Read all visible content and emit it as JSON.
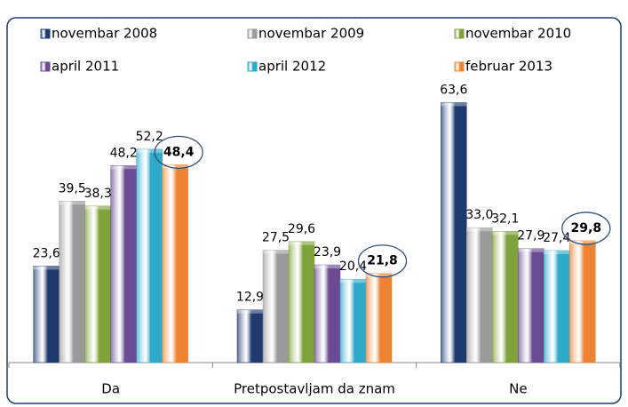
{
  "chart_data": {
    "type": "bar",
    "categories": [
      "Da",
      "Pretpostavljam da znam",
      "Ne"
    ],
    "series": [
      {
        "name": "novembar 2008",
        "color": "#1f3a6e",
        "values": [
          23.6,
          12.9,
          63.6
        ],
        "value_labels": [
          "23,6",
          "12,9",
          "63,6"
        ]
      },
      {
        "name": "novembar 2009",
        "color": "#9a9a9a",
        "values": [
          39.5,
          27.5,
          33.0
        ],
        "value_labels": [
          "39,5",
          "27,5",
          "33,0"
        ]
      },
      {
        "name": "novembar 2010",
        "color": "#7fa33a",
        "values": [
          38.3,
          29.6,
          32.1
        ],
        "value_labels": [
          "38,3",
          "29,6",
          "32,1"
        ]
      },
      {
        "name": "april 2011",
        "color": "#6a4b94",
        "values": [
          48.2,
          23.9,
          27.9
        ],
        "value_labels": [
          "48,2",
          "23,9",
          "27,9"
        ]
      },
      {
        "name": "april 2012",
        "color": "#2ea9c9",
        "values": [
          52.2,
          20.4,
          27.4
        ],
        "value_labels": [
          "52,2",
          "20,4",
          "27,4"
        ]
      },
      {
        "name": "februar 2013",
        "color": "#ec8434",
        "values": [
          48.4,
          21.8,
          29.8
        ],
        "value_labels": [
          "48,4",
          "21,8",
          "29,8"
        ]
      }
    ],
    "ylim": [
      0,
      70
    ]
  }
}
